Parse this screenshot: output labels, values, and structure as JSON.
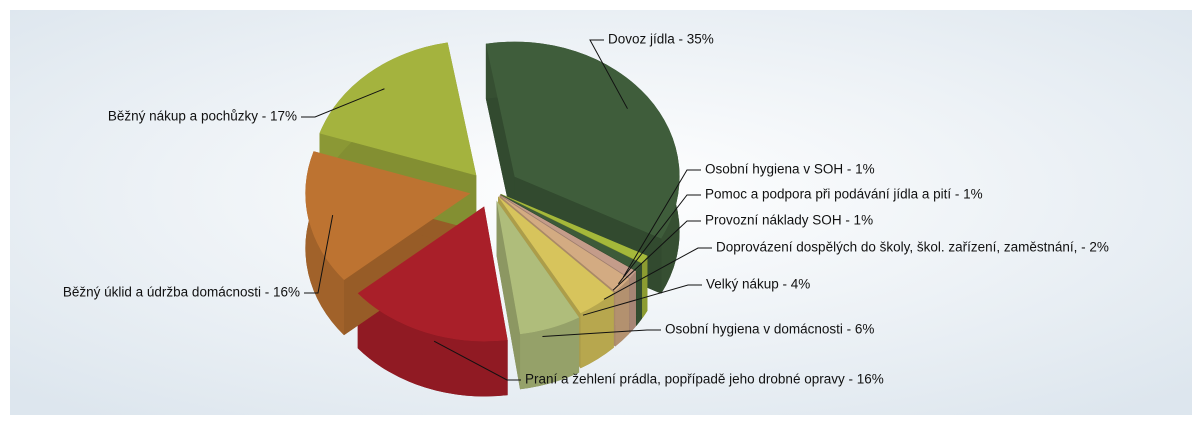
{
  "chart_data": {
    "type": "pie3d",
    "categories": [
      "Dovoz jídla - 35%",
      "Osobní hygiena v SOH - 1%",
      "Pomoc a podpora při podávání jídla a pití - 1%",
      "Provozní náklady SOH - 1%",
      "Doprovázení dospělých do školy, škol. zařízení, zaměstnání,  - 2%",
      "Velký nákup - 4%",
      "Osobní hygiena v domácnosti - 6%",
      "Praní a žehlení prádla, popřípadě jeho drobné opravy - 16%",
      "Běžný úklid a údržba domácnosti - 16%",
      "Běžný nákup a pochůzky - 17%"
    ],
    "values": [
      35,
      1,
      1,
      1,
      2,
      4,
      6,
      16,
      16,
      17
    ],
    "colors": [
      "#3f5d3b",
      "#a5b83a",
      "#3d5a39",
      "#c49c8a",
      "#d3ab82",
      "#d7c45c",
      "#afbd7b",
      "#a91f29",
      "#bd7331",
      "#a4b33e"
    ]
  }
}
